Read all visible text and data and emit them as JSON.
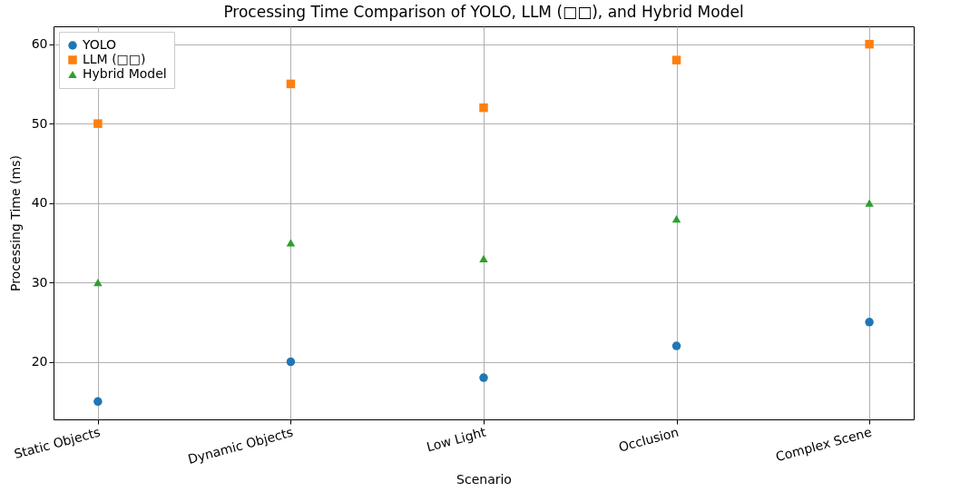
{
  "chart_data": {
    "type": "scatter",
    "title": "Processing Time Comparison of YOLO, LLM (□□), and Hybrid Model",
    "xlabel": "Scenario",
    "ylabel": "Processing Time (ms)",
    "categories": [
      "Static Objects",
      "Dynamic Objects",
      "Low Light",
      "Occlusion",
      "Complex Scene"
    ],
    "series": [
      {
        "name": "YOLO",
        "color": "#1f77b4",
        "marker": "circle",
        "values": [
          15,
          20,
          18,
          22,
          25
        ]
      },
      {
        "name": "LLM (□□)",
        "color": "#ff7f0e",
        "marker": "square",
        "values": [
          50,
          55,
          52,
          58,
          60
        ]
      },
      {
        "name": "Hybrid Model",
        "color": "#2ca02c",
        "marker": "triangle",
        "values": [
          30,
          35,
          33,
          38,
          40
        ]
      }
    ],
    "ylim": [
      12.75,
      62.25
    ],
    "yticks": [
      20,
      30,
      40,
      50,
      60
    ],
    "grid": true,
    "legend": "top left"
  }
}
